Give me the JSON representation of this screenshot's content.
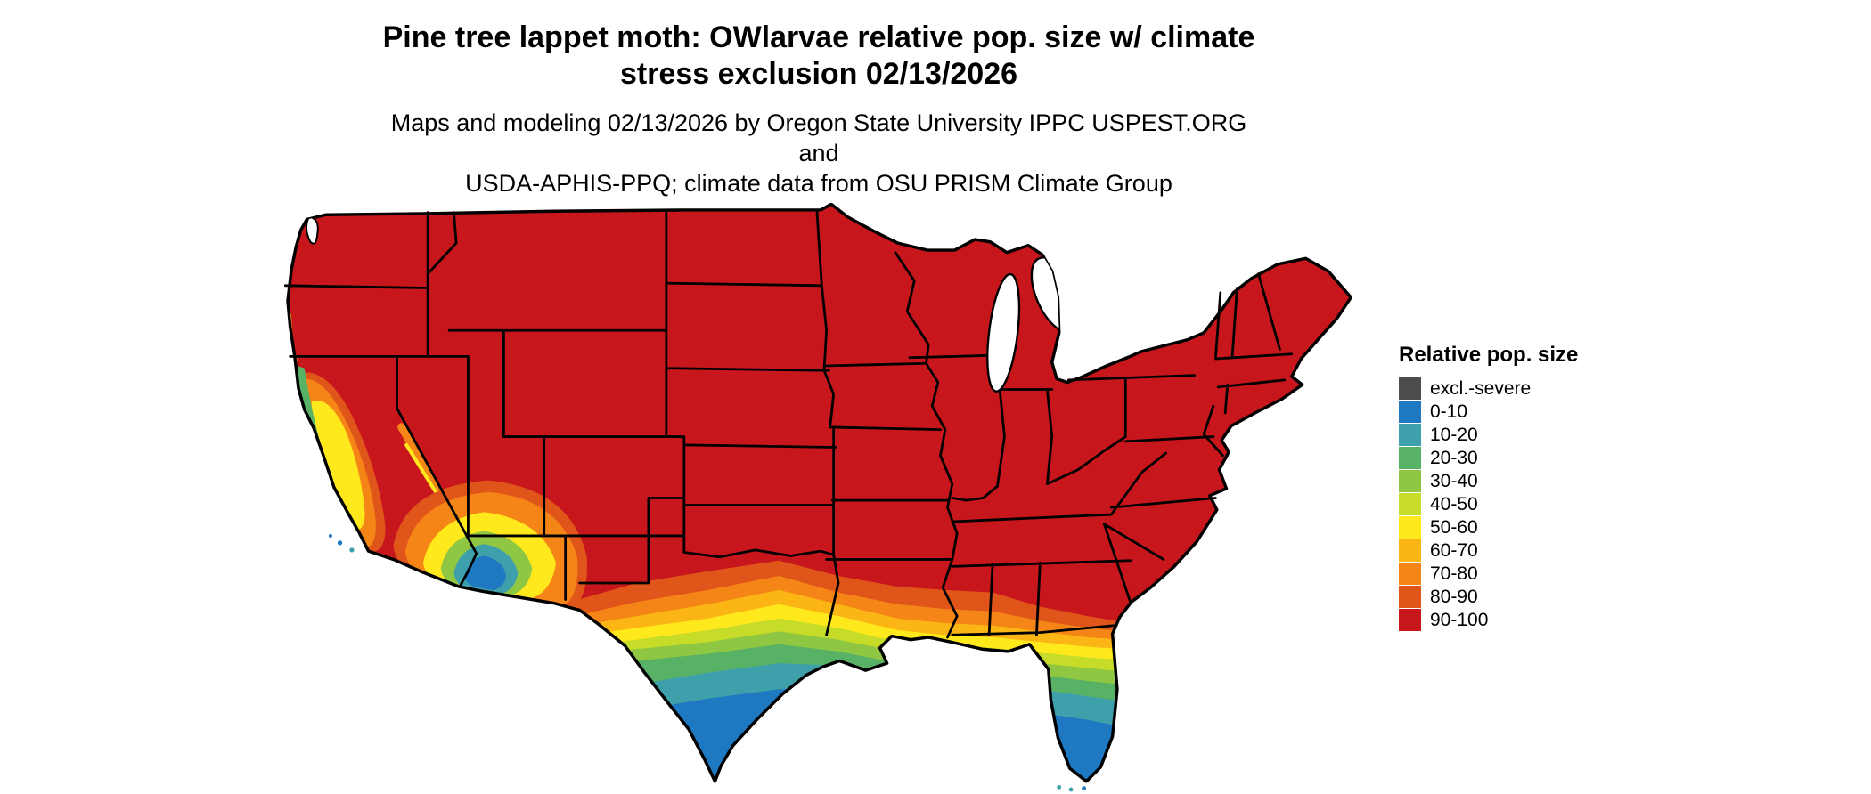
{
  "header": {
    "title_line1": "Pine tree lappet moth: OWlarvae relative pop. size w/ climate",
    "title_line2": "stress exclusion 02/13/2026",
    "subtitle_line1": "Maps and modeling 02/13/2026 by Oregon State University IPPC USPEST.ORG and",
    "subtitle_line2": "USDA-APHIS-PPQ; climate data from OSU PRISM Climate Group"
  },
  "legend": {
    "title": "Relative pop. size",
    "entries": [
      {
        "label": "excl.-severe",
        "color": "#4D4D4D"
      },
      {
        "label": "0-10",
        "color": "#1E78C2"
      },
      {
        "label": "10-20",
        "color": "#3EA0AA"
      },
      {
        "label": "20-30",
        "color": "#58B266"
      },
      {
        "label": "30-40",
        "color": "#8FC742"
      },
      {
        "label": "40-50",
        "color": "#C6DC28"
      },
      {
        "label": "50-60",
        "color": "#FFE91C"
      },
      {
        "label": "60-70",
        "color": "#FBB615"
      },
      {
        "label": "70-80",
        "color": "#F48516"
      },
      {
        "label": "80-90",
        "color": "#E05519"
      },
      {
        "label": "90-100",
        "color": "#C8161D"
      }
    ]
  },
  "map": {
    "region": "Continental United States",
    "variable": "Relative pop. size",
    "classes": [
      "excl.-severe",
      "0-10",
      "10-20",
      "20-30",
      "30-40",
      "40-50",
      "50-60",
      "60-70",
      "70-80",
      "80-90",
      "90-100"
    ],
    "dominant_class": "90-100",
    "gradient_zones": "Values decrease southward across southern Texas, the Gulf Coast and peninsular Florida (reaching 0-10 at the southern tips), and across coastal/central California and southwestern Arizona"
  }
}
